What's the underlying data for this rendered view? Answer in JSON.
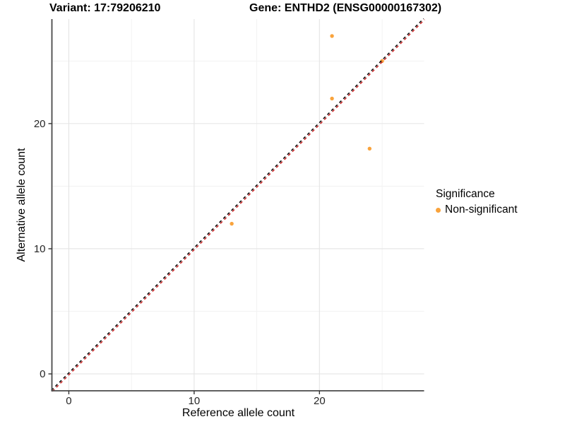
{
  "chart_data": {
    "type": "scatter",
    "title_variant": "Variant: 17:79206210",
    "title_gene": "Gene: ENTHD2 (ENSG00000167302)",
    "xlabel": "Reference allele count",
    "ylabel": "Alternative allele count",
    "xlim": [
      -1.35,
      28.35
    ],
    "ylim": [
      -1.35,
      28.35
    ],
    "x_major_ticks": [
      0,
      10,
      20
    ],
    "y_major_ticks": [
      0,
      10,
      20
    ],
    "x_minor_ticks": [
      5,
      15,
      25
    ],
    "y_minor_ticks": [
      5,
      15,
      25
    ],
    "grid": "major+minor",
    "legend": {
      "title": "Significance",
      "position": "right-center"
    },
    "series": [
      {
        "name": "Non-significant",
        "color": "#F9A33C",
        "points": [
          [
            21,
            27
          ],
          [
            25,
            25
          ],
          [
            21,
            22
          ],
          [
            24,
            18
          ],
          [
            13,
            12
          ]
        ]
      }
    ],
    "identity_line": {
      "equation": "y = x",
      "style": "dashed",
      "colors": [
        "#000000",
        "#C81E1E"
      ]
    },
    "colors": {
      "axis_line": "#4A4A4A",
      "tick": "#333333",
      "tick_label": "#262626",
      "grid_major": "#E4E4E4",
      "grid_minor": "#F1F1F1",
      "background": "#FFFFFF"
    }
  }
}
